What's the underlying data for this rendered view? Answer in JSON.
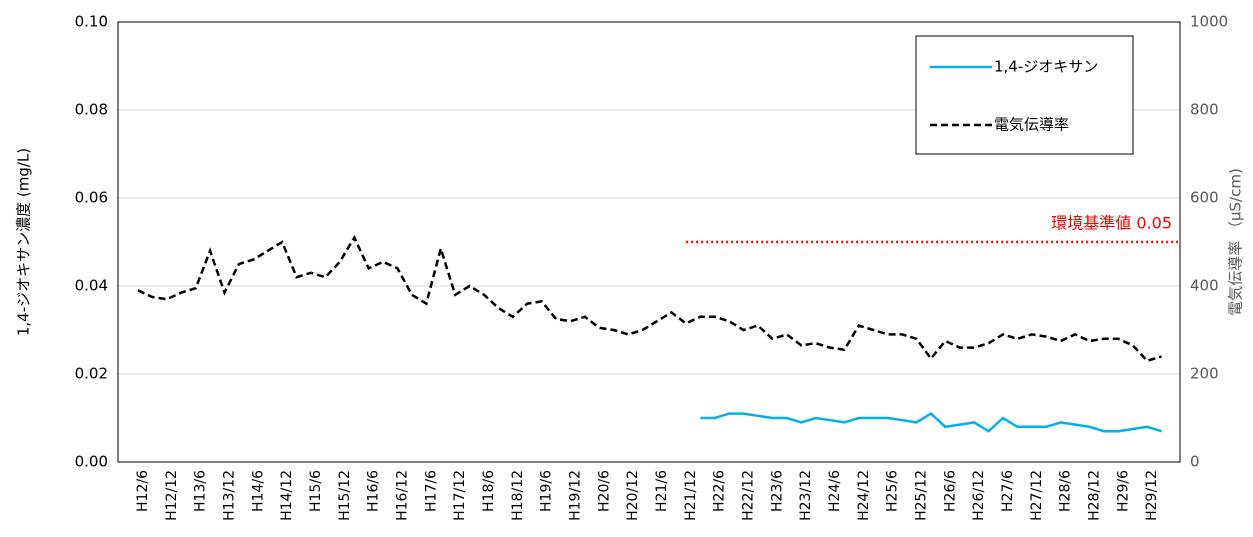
{
  "chart_data": {
    "type": "line",
    "y_label": "1,4-ジオキサン濃度 (mg/L)",
    "y2_label": "電気伝導率 （μS/cm)",
    "categories": [
      "H12/6",
      null,
      "H12/12",
      null,
      "H13/6",
      null,
      "H13/12",
      null,
      "H14/6",
      null,
      "H14/12",
      null,
      "H15/6",
      null,
      "H15/12",
      null,
      "H16/6",
      null,
      "H16/12",
      null,
      "H17/6",
      null,
      "H17/12",
      null,
      "H18/6",
      null,
      "H18/12",
      null,
      "H19/6",
      null,
      "H19/12",
      null,
      "H20/6",
      null,
      "H20/12",
      null,
      "H21/6",
      null,
      "H21/12",
      null,
      "H22/6",
      null,
      "H22/12",
      null,
      "H23/6",
      null,
      "H23/12",
      null,
      "H24/6",
      null,
      "H24/12",
      null,
      "H25/6",
      null,
      "H25/12",
      null,
      "H26/6",
      null,
      "H26/12",
      null,
      "H27/6",
      null,
      "H27/12",
      null,
      "H28/6",
      null,
      "H28/12",
      null,
      "H29/6",
      null,
      "H29/12",
      null
    ],
    "series": [
      {
        "name": "1,4-ジオキサン",
        "color": "#00b0f0",
        "axis": "y",
        "dash": false,
        "values": [
          null,
          null,
          null,
          null,
          null,
          null,
          null,
          null,
          null,
          null,
          null,
          null,
          null,
          null,
          null,
          null,
          null,
          null,
          null,
          null,
          null,
          null,
          null,
          null,
          null,
          null,
          null,
          null,
          null,
          null,
          null,
          null,
          null,
          null,
          null,
          null,
          null,
          null,
          null,
          0.01,
          0.01,
          0.011,
          0.011,
          0.0105,
          0.01,
          0.01,
          0.009,
          0.01,
          0.0095,
          0.009,
          0.01,
          0.01,
          0.01,
          0.0095,
          0.009,
          0.011,
          0.008,
          0.0085,
          0.009,
          0.007,
          0.01,
          0.008,
          0.008,
          0.008,
          0.009,
          0.0085,
          0.008,
          0.007,
          0.007,
          0.0075,
          0.008,
          0.007
        ]
      },
      {
        "name": "電気伝導率",
        "color": "#000000",
        "axis": "y2",
        "dash": true,
        "values": [
          390,
          375,
          370,
          385,
          395,
          480,
          385,
          450,
          460,
          480,
          500,
          420,
          430,
          420,
          455,
          510,
          440,
          455,
          440,
          380,
          360,
          485,
          380,
          400,
          380,
          350,
          330,
          360,
          365,
          325,
          320,
          330,
          305,
          300,
          290,
          300,
          320,
          340,
          315,
          330,
          330,
          320,
          300,
          310,
          280,
          290,
          265,
          270,
          260,
          255,
          310,
          300,
          290,
          290,
          280,
          235,
          275,
          260,
          260,
          270,
          290,
          280,
          290,
          285,
          275,
          290,
          275,
          280,
          280,
          265,
          230,
          240
        ]
      }
    ],
    "ylim": [
      0,
      0.1
    ],
    "yticks": [
      {
        "value": 0,
        "label": "0.00"
      },
      0.02,
      0.04,
      0.06,
      0.08,
      {
        "value": 0.1,
        "label": "0.10"
      }
    ],
    "y2lim": [
      0,
      1000
    ],
    "y2ticks": [
      0,
      200,
      400,
      600,
      800,
      1000
    ],
    "grid": true,
    "legend": "upper right",
    "annotation": {
      "text": "環境基準値 0.05",
      "value": 0.05,
      "color": "#ff0000"
    }
  }
}
